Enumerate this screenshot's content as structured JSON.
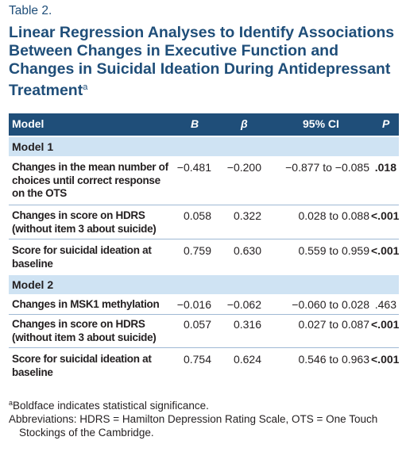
{
  "table_label": "Table 2.",
  "title": "Linear Regression Analyses to Identify Associations Between Changes in Executive Function and Changes in Suicidal Ideation During Antidepressant Treatment",
  "title_note_marker": "a",
  "header": {
    "model": "Model",
    "b": "B",
    "beta": "β",
    "ci": "95% CI",
    "p": "P"
  },
  "models": [
    {
      "name": "Model 1",
      "rows": [
        {
          "variable": "Changes in the mean number of choices until correct response on the OTS",
          "b": "−0.481",
          "beta": "−0.200",
          "ci": "−0.877 to −0.085",
          "p": ".018"
        },
        {
          "variable": "Changes in score on HDRS (without item 3 about suicide)",
          "b": "0.058",
          "beta": "0.322",
          "ci": "0.028 to 0.088",
          "p": "<.001"
        },
        {
          "variable": "Score for suicidal ideation at baseline",
          "b": "0.759",
          "beta": "0.630",
          "ci": "0.559 to 0.959",
          "p": "<.001"
        }
      ]
    },
    {
      "name": "Model 2",
      "rows": [
        {
          "variable": "Changes in MSK1 methylation",
          "b": "−0.016",
          "beta": "−0.062",
          "ci": "−0.060 to 0.028",
          "p": ".463"
        },
        {
          "variable": "Changes in score on HDRS (without item 3 about suicide)",
          "b": "0.057",
          "beta": "0.316",
          "ci": "0.027 to 0.087",
          "p": "<.001"
        },
        {
          "variable": "Score for suicidal ideation at baseline",
          "b": "0.754",
          "beta": "0.624",
          "ci": "0.546 to 0.963",
          "p": "<.001"
        }
      ]
    }
  ],
  "footnotes": {
    "marker": "a",
    "significance": "Boldface indicates statistical significance.",
    "abbreviations": "Abbreviations: HDRS = Hamilton Depression Rating Scale, OTS = One Touch Stockings of the Cambridge."
  }
}
